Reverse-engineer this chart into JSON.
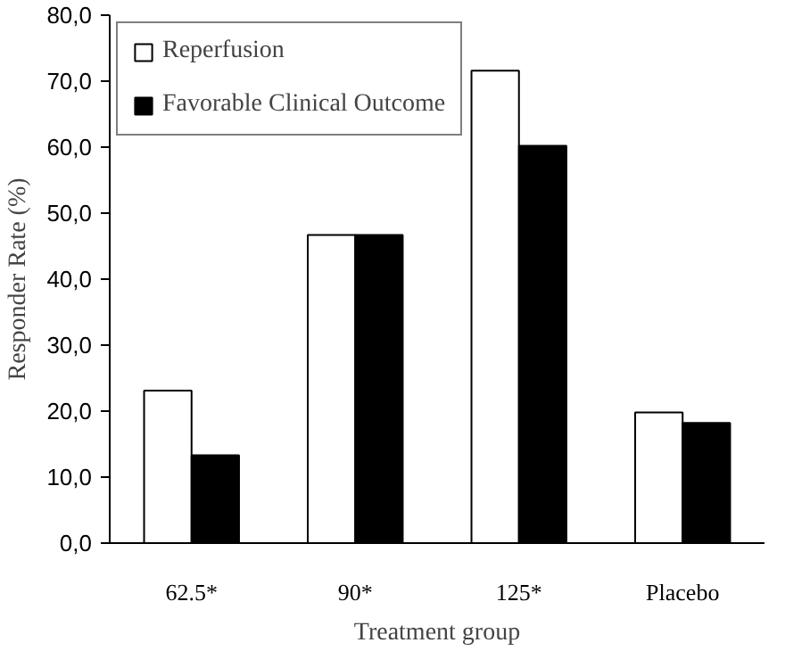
{
  "chart_data": {
    "type": "bar",
    "xlabel": "Treatment group",
    "ylabel": "Responder Rate (%)",
    "categories": [
      "62.5*",
      "90*",
      "125*",
      "Placebo"
    ],
    "series": [
      {
        "name": "Reperfusion",
        "color": "#ffffff",
        "values": [
          23.1,
          46.7,
          71.6,
          19.8
        ]
      },
      {
        "name": "Favorable Clinical Outcome",
        "color": "#000000",
        "values": [
          13.3,
          46.7,
          60.2,
          18.2
        ]
      }
    ],
    "ylim": [
      0,
      80
    ],
    "yticks": [
      {
        "value": 0,
        "label": "0,0"
      },
      {
        "value": 10,
        "label": "10,0"
      },
      {
        "value": 20,
        "label": "20,0"
      },
      {
        "value": 30,
        "label": "30,0"
      },
      {
        "value": 40,
        "label": "40,0"
      },
      {
        "value": 50,
        "label": "50,0"
      },
      {
        "value": 60,
        "label": "60,0"
      },
      {
        "value": 70,
        "label": "70,0"
      },
      {
        "value": 80,
        "label": "80,0"
      }
    ],
    "grid": false,
    "legend": "top left"
  }
}
